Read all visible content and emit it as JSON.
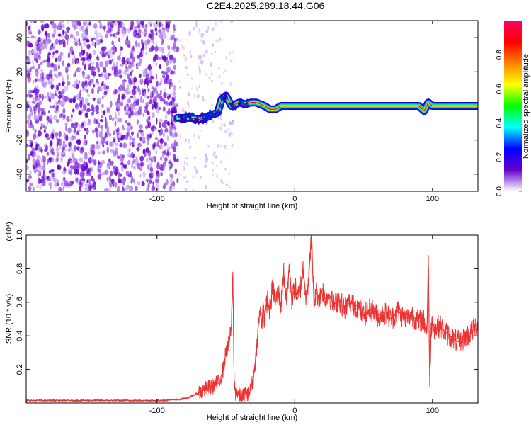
{
  "title": "C2E4.2025.289.18.44.G06",
  "chart_data": [
    {
      "type": "heatmap",
      "xlabel": "Height of straight line (km)",
      "ylabel": "Frequency (Hz)",
      "xlim": [
        -195,
        133
      ],
      "ylim": [
        -50,
        50
      ],
      "x_ticks": [
        -100,
        0,
        100
      ],
      "y_ticks": [
        -40,
        -20,
        0,
        20,
        40
      ],
      "colorbar": {
        "label": "Normalized spectral amplitude",
        "range": [
          0,
          1
        ],
        "ticks": [
          "0.0",
          "0.2",
          "0.4",
          "0.6",
          "0.8"
        ],
        "colors": [
          "#ffffff",
          "#6600cc",
          "#0000ff",
          "#00ffff",
          "#00ff00",
          "#ffff00",
          "#ff8000",
          "#ff0000",
          "#ff0066"
        ]
      },
      "noise_region_x": [
        -195,
        -85
      ],
      "ridge_frequency_profile": {
        "x": [
          -85,
          -75,
          -70,
          -65,
          -60,
          -56,
          -53,
          -50,
          -46,
          -40,
          -36,
          -32,
          -28,
          -22,
          -18,
          -14,
          -10,
          0,
          20,
          60,
          90,
          94,
          97,
          100,
          120,
          133
        ],
        "freq": [
          -7,
          -7,
          -8,
          -7,
          -5,
          -4,
          4,
          6,
          0,
          2,
          1,
          2,
          2,
          0,
          -2,
          -2,
          0,
          0,
          0,
          0,
          0,
          -3,
          2,
          0,
          0,
          0
        ]
      }
    },
    {
      "type": "line",
      "xlabel": "Height of straight line (km)",
      "ylabel": "SNR (10 * v/v)",
      "y_multiplier": "(x10⁴)",
      "xlim": [
        -195,
        133
      ],
      "ylim": [
        0,
        1.0
      ],
      "x_ticks": [
        -100,
        0,
        100
      ],
      "y_ticks": [
        0.2,
        0.4,
        0.6,
        0.8,
        1.0
      ],
      "color": "#ee3333",
      "series": [
        {
          "x": [
            -195,
            -150,
            -100,
            -85,
            -78,
            -70,
            -65,
            -60,
            -55,
            -52,
            -50,
            -48,
            -46,
            -45,
            -44,
            -43,
            -42,
            -41,
            -40,
            -38,
            -36,
            -34,
            -32,
            -30,
            -28,
            -26,
            -25,
            -24,
            -23,
            -22,
            -20,
            -18,
            -16,
            -14,
            -12,
            -10,
            -8,
            -6,
            -4,
            -2,
            0,
            2,
            4,
            6,
            8,
            10,
            12,
            14,
            16,
            18,
            20,
            22,
            25,
            28,
            32,
            36,
            40,
            45,
            50,
            55,
            60,
            65,
            70,
            75,
            80,
            85,
            90,
            93,
            95,
            96,
            97,
            98,
            99,
            100,
            102,
            105,
            110,
            115,
            120,
            125,
            130,
            133
          ],
          "y": [
            0.015,
            0.015,
            0.015,
            0.02,
            0.03,
            0.06,
            0.08,
            0.1,
            0.12,
            0.2,
            0.3,
            0.35,
            0.45,
            0.78,
            0.12,
            0.06,
            0.07,
            0.05,
            0.04,
            0.03,
            0.06,
            0.04,
            0.08,
            0.15,
            0.3,
            0.5,
            0.55,
            0.45,
            0.6,
            0.5,
            0.62,
            0.55,
            0.7,
            0.6,
            0.66,
            0.58,
            0.78,
            0.6,
            0.82,
            0.6,
            0.7,
            0.62,
            0.68,
            0.8,
            0.65,
            0.72,
            1.0,
            0.6,
            0.66,
            0.62,
            0.68,
            0.62,
            0.65,
            0.58,
            0.62,
            0.56,
            0.6,
            0.58,
            0.52,
            0.56,
            0.52,
            0.54,
            0.5,
            0.55,
            0.5,
            0.53,
            0.48,
            0.5,
            0.46,
            0.42,
            0.88,
            0.1,
            0.45,
            0.48,
            0.44,
            0.46,
            0.42,
            0.38,
            0.36,
            0.4,
            0.44,
            0.48
          ]
        }
      ]
    }
  ]
}
